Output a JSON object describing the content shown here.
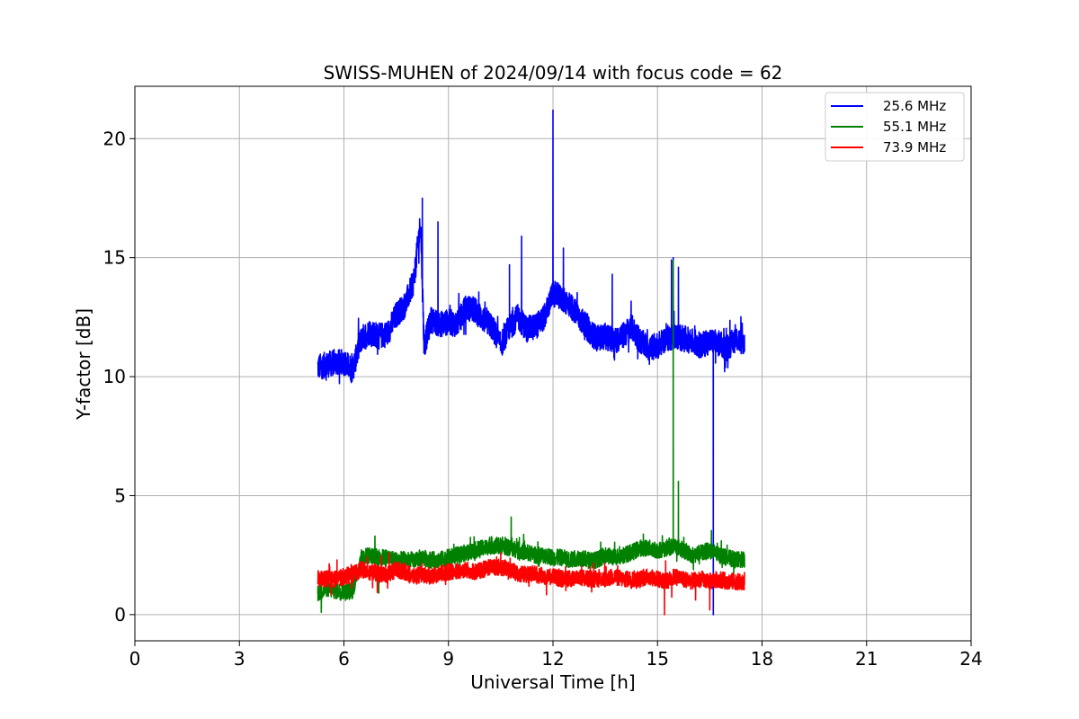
{
  "chart_data": {
    "type": "line",
    "title": "SWISS-MUHEN of 2024/09/14 with focus code = 62",
    "xlabel": "Universal Time [h]",
    "ylabel": "Y-factor [dB]",
    "xlim": [
      0,
      24
    ],
    "ylim": [
      -1.1,
      22.2
    ],
    "xticks": [
      0,
      3,
      6,
      9,
      12,
      15,
      18,
      21,
      24
    ],
    "yticks": [
      0,
      5,
      10,
      15,
      20
    ],
    "grid": true,
    "legend_position": "top-right",
    "series": [
      {
        "name": "25.6 MHz",
        "color": "#0000ff",
        "points": [
          [
            5.25,
            10.4
          ],
          [
            5.5,
            10.5
          ],
          [
            5.75,
            10.6
          ],
          [
            6.0,
            10.6
          ],
          [
            6.25,
            10.3
          ],
          [
            6.5,
            11.6
          ],
          [
            6.75,
            11.9
          ],
          [
            7.0,
            11.7
          ],
          [
            7.25,
            11.8
          ],
          [
            7.5,
            12.6
          ],
          [
            7.75,
            13.0
          ],
          [
            8.0,
            14.0
          ],
          [
            8.2,
            16.5
          ],
          [
            8.3,
            11.3
          ],
          [
            8.5,
            12.4
          ],
          [
            8.75,
            12.2
          ],
          [
            9.0,
            12.3
          ],
          [
            9.25,
            12.2
          ],
          [
            9.5,
            12.9
          ],
          [
            9.75,
            12.8
          ],
          [
            10.0,
            12.4
          ],
          [
            10.25,
            12.1
          ],
          [
            10.5,
            11.3
          ],
          [
            10.75,
            12.1
          ],
          [
            11.0,
            12.5
          ],
          [
            11.25,
            12.0
          ],
          [
            11.5,
            12.1
          ],
          [
            11.75,
            12.5
          ],
          [
            12.0,
            13.5
          ],
          [
            12.25,
            13.3
          ],
          [
            12.5,
            13.0
          ],
          [
            12.75,
            12.5
          ],
          [
            13.0,
            12.0
          ],
          [
            13.25,
            11.6
          ],
          [
            13.5,
            11.7
          ],
          [
            13.75,
            11.5
          ],
          [
            14.0,
            11.7
          ],
          [
            14.25,
            12.1
          ],
          [
            14.5,
            11.5
          ],
          [
            14.75,
            11.2
          ],
          [
            15.0,
            11.3
          ],
          [
            15.25,
            11.6
          ],
          [
            15.5,
            11.7
          ],
          [
            15.75,
            11.6
          ],
          [
            16.0,
            11.5
          ],
          [
            16.25,
            11.3
          ],
          [
            16.5,
            11.5
          ],
          [
            16.75,
            11.4
          ],
          [
            17.0,
            11.2
          ],
          [
            17.25,
            11.6
          ],
          [
            17.5,
            11.4
          ]
        ],
        "spikes": [
          [
            8.25,
            17.5
          ],
          [
            8.7,
            16.5
          ],
          [
            10.75,
            14.7
          ],
          [
            11.1,
            15.9
          ],
          [
            12.0,
            21.2
          ],
          [
            12.3,
            15.4
          ],
          [
            13.7,
            14.3
          ],
          [
            15.4,
            14.9
          ],
          [
            15.45,
            15.0
          ],
          [
            15.6,
            14.6
          ],
          [
            16.6,
            0.0
          ]
        ]
      },
      {
        "name": "55.1 MHz",
        "color": "#008000",
        "points": [
          [
            5.25,
            0.9
          ],
          [
            5.5,
            1.1
          ],
          [
            5.75,
            1.0
          ],
          [
            6.0,
            1.0
          ],
          [
            6.25,
            1.0
          ],
          [
            6.5,
            2.4
          ],
          [
            6.75,
            2.5
          ],
          [
            7.0,
            2.4
          ],
          [
            7.25,
            2.4
          ],
          [
            7.5,
            2.3
          ],
          [
            7.75,
            2.3
          ],
          [
            8.0,
            2.3
          ],
          [
            8.25,
            2.4
          ],
          [
            8.5,
            2.3
          ],
          [
            8.75,
            2.3
          ],
          [
            9.0,
            2.4
          ],
          [
            9.25,
            2.5
          ],
          [
            9.5,
            2.6
          ],
          [
            9.75,
            2.7
          ],
          [
            10.0,
            2.8
          ],
          [
            10.25,
            2.9
          ],
          [
            10.5,
            2.9
          ],
          [
            10.75,
            2.8
          ],
          [
            11.0,
            2.7
          ],
          [
            11.25,
            2.6
          ],
          [
            11.5,
            2.5
          ],
          [
            11.75,
            2.5
          ],
          [
            12.0,
            2.4
          ],
          [
            12.25,
            2.4
          ],
          [
            12.5,
            2.3
          ],
          [
            12.75,
            2.4
          ],
          [
            13.0,
            2.3
          ],
          [
            13.25,
            2.3
          ],
          [
            13.5,
            2.5
          ],
          [
            13.75,
            2.4
          ],
          [
            14.0,
            2.5
          ],
          [
            14.25,
            2.6
          ],
          [
            14.5,
            2.8
          ],
          [
            14.75,
            2.8
          ],
          [
            15.0,
            2.7
          ],
          [
            15.25,
            2.8
          ],
          [
            15.5,
            2.9
          ],
          [
            15.75,
            2.7
          ],
          [
            16.0,
            2.5
          ],
          [
            16.25,
            2.6
          ],
          [
            16.5,
            2.7
          ],
          [
            16.75,
            2.5
          ],
          [
            17.0,
            2.4
          ],
          [
            17.25,
            2.3
          ],
          [
            17.5,
            2.3
          ]
        ],
        "spikes": [
          [
            5.35,
            0.1
          ],
          [
            7.0,
            0.9
          ],
          [
            10.8,
            4.1
          ],
          [
            15.45,
            14.9
          ],
          [
            15.6,
            5.6
          ]
        ]
      },
      {
        "name": "73.9 MHz",
        "color": "#ff0000",
        "points": [
          [
            5.25,
            1.5
          ],
          [
            5.5,
            1.5
          ],
          [
            5.75,
            1.5
          ],
          [
            6.0,
            1.6
          ],
          [
            6.25,
            1.7
          ],
          [
            6.5,
            1.9
          ],
          [
            6.75,
            1.8
          ],
          [
            7.0,
            1.7
          ],
          [
            7.25,
            1.7
          ],
          [
            7.5,
            1.9
          ],
          [
            7.75,
            1.8
          ],
          [
            8.0,
            1.6
          ],
          [
            8.25,
            1.7
          ],
          [
            8.5,
            1.6
          ],
          [
            8.75,
            1.7
          ],
          [
            9.0,
            1.8
          ],
          [
            9.25,
            1.8
          ],
          [
            9.5,
            1.9
          ],
          [
            9.75,
            1.8
          ],
          [
            10.0,
            1.9
          ],
          [
            10.25,
            2.0
          ],
          [
            10.5,
            2.0
          ],
          [
            10.75,
            1.9
          ],
          [
            11.0,
            1.7
          ],
          [
            11.25,
            1.7
          ],
          [
            11.5,
            1.7
          ],
          [
            11.75,
            1.6
          ],
          [
            12.0,
            1.6
          ],
          [
            12.25,
            1.5
          ],
          [
            12.5,
            1.5
          ],
          [
            12.75,
            1.6
          ],
          [
            13.0,
            1.5
          ],
          [
            13.25,
            1.5
          ],
          [
            13.5,
            1.5
          ],
          [
            13.75,
            1.6
          ],
          [
            14.0,
            1.5
          ],
          [
            14.25,
            1.5
          ],
          [
            14.5,
            1.5
          ],
          [
            14.75,
            1.6
          ],
          [
            15.0,
            1.5
          ],
          [
            15.25,
            1.4
          ],
          [
            15.5,
            1.6
          ],
          [
            15.75,
            1.5
          ],
          [
            16.0,
            1.4
          ],
          [
            16.25,
            1.5
          ],
          [
            16.5,
            1.4
          ],
          [
            16.75,
            1.5
          ],
          [
            17.0,
            1.4
          ],
          [
            17.25,
            1.4
          ],
          [
            17.5,
            1.3
          ]
        ],
        "spikes": [
          [
            5.8,
            2.3
          ],
          [
            7.3,
            2.6
          ],
          [
            10.5,
            2.6
          ],
          [
            15.2,
            0.0
          ],
          [
            16.5,
            0.2
          ]
        ]
      }
    ],
    "noise_amplitude": {
      "25.6 MHz": 0.55,
      "55.1 MHz": 0.35,
      "73.9 MHz": 0.35
    }
  }
}
